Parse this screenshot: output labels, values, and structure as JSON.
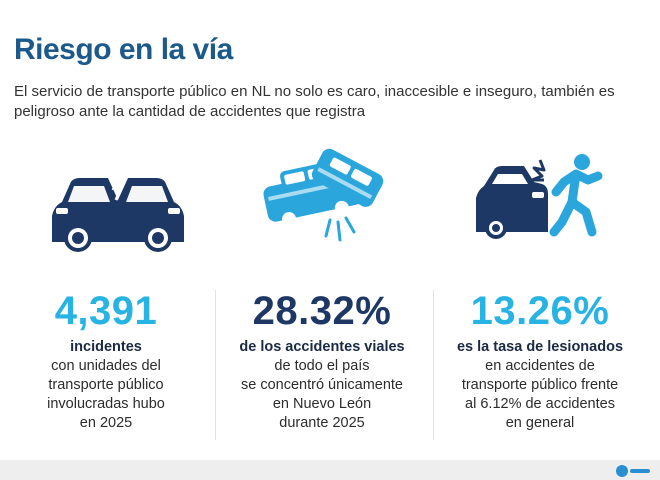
{
  "header": {
    "title": "Riesgo en la vía",
    "subtitle": "El servicio de transporte público en NL no solo es caro, inaccesible e inseguro, también es peligroso ante la cantidad de accidentes que registra"
  },
  "stats": [
    {
      "value": "4,391",
      "highlight": "incidentes",
      "lines": [
        "con unidades del",
        "transporte público",
        "involucradas hubo",
        "en 2025"
      ],
      "color": "#27b3e4",
      "icon": "car-front-collision-icon"
    },
    {
      "value": "28.32%",
      "highlight": "de los accidentes viales",
      "lines": [
        "de todo el país",
        "se concentró únicamente",
        "en Nuevo León",
        "durante 2025"
      ],
      "color": "#1e3866",
      "icon": "car-crash-icon"
    },
    {
      "value": "13.26%",
      "highlight": "es la tasa de lesionados",
      "lines": [
        "en accidentes de",
        "transporte público frente",
        "al 6.12% de accidentes",
        "en general"
      ],
      "color": "#27b3e4",
      "icon": "pedestrian-hit-icon"
    }
  ],
  "colors": {
    "title": "#1b5a8a",
    "navy": "#1e3866",
    "cyan": "#27b3e4",
    "icon_blue": "#2a9fd8"
  }
}
